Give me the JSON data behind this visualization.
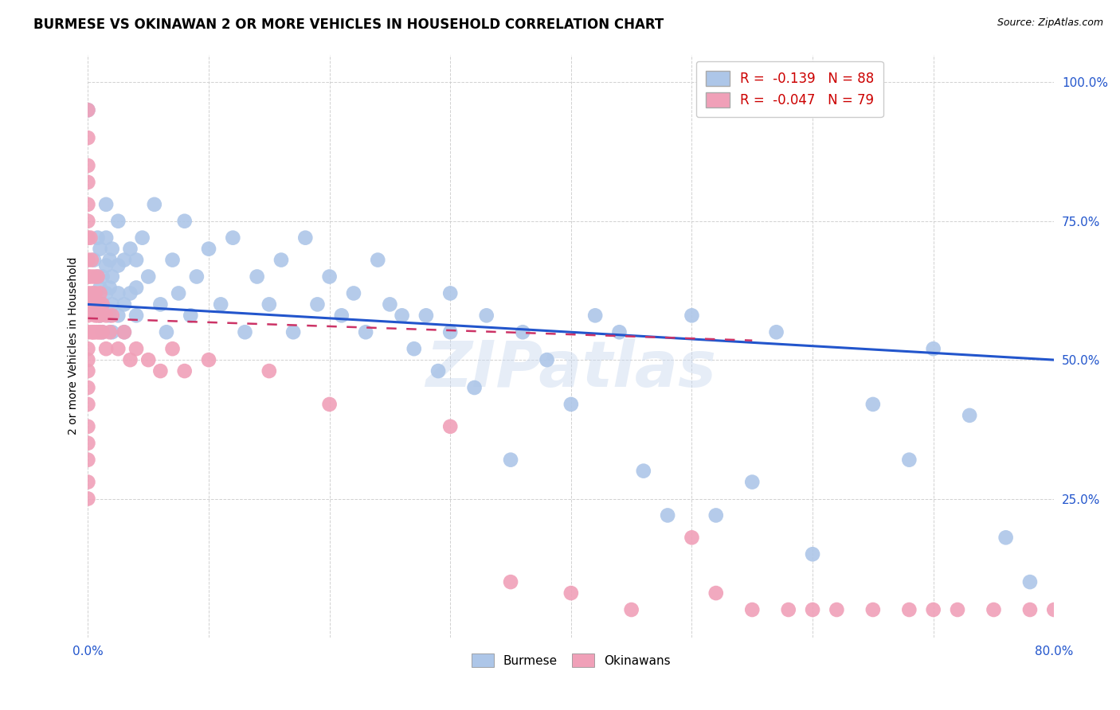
{
  "title": "BURMESE VS OKINAWAN 2 OR MORE VEHICLES IN HOUSEHOLD CORRELATION CHART",
  "source": "Source: ZipAtlas.com",
  "ylabel": "2 or more Vehicles in Household",
  "ytick_labels": [
    "100.0%",
    "75.0%",
    "50.0%",
    "25.0%"
  ],
  "ytick_values": [
    1.0,
    0.75,
    0.5,
    0.25
  ],
  "xlim": [
    0.0,
    0.8
  ],
  "ylim": [
    0.0,
    1.05
  ],
  "legend_r_burmese": "-0.139",
  "legend_n_burmese": "88",
  "legend_r_okinawan": "-0.047",
  "legend_n_okinawan": "79",
  "burmese_color": "#adc6e8",
  "okinawan_color": "#f0a0b8",
  "trendline_burmese_color": "#2255cc",
  "trendline_okinawan_color": "#cc3366",
  "watermark": "ZIPatlas",
  "burmese_x": [
    0.0,
    0.005,
    0.005,
    0.008,
    0.008,
    0.008,
    0.01,
    0.01,
    0.01,
    0.012,
    0.012,
    0.012,
    0.015,
    0.015,
    0.015,
    0.015,
    0.018,
    0.018,
    0.018,
    0.02,
    0.02,
    0.02,
    0.02,
    0.025,
    0.025,
    0.025,
    0.025,
    0.03,
    0.03,
    0.03,
    0.035,
    0.035,
    0.04,
    0.04,
    0.04,
    0.045,
    0.05,
    0.055,
    0.06,
    0.065,
    0.07,
    0.075,
    0.08,
    0.085,
    0.09,
    0.1,
    0.11,
    0.12,
    0.13,
    0.14,
    0.15,
    0.16,
    0.17,
    0.18,
    0.19,
    0.2,
    0.21,
    0.22,
    0.23,
    0.24,
    0.25,
    0.26,
    0.27,
    0.28,
    0.29,
    0.3,
    0.3,
    0.32,
    0.33,
    0.35,
    0.36,
    0.38,
    0.4,
    0.42,
    0.44,
    0.46,
    0.48,
    0.5,
    0.52,
    0.55,
    0.57,
    0.6,
    0.65,
    0.68,
    0.7,
    0.73,
    0.76,
    0.78
  ],
  "burmese_y": [
    0.95,
    0.62,
    0.68,
    0.6,
    0.65,
    0.72,
    0.58,
    0.63,
    0.7,
    0.55,
    0.6,
    0.65,
    0.62,
    0.67,
    0.72,
    0.78,
    0.58,
    0.63,
    0.68,
    0.55,
    0.6,
    0.65,
    0.7,
    0.58,
    0.62,
    0.67,
    0.75,
    0.55,
    0.6,
    0.68,
    0.62,
    0.7,
    0.58,
    0.63,
    0.68,
    0.72,
    0.65,
    0.78,
    0.6,
    0.55,
    0.68,
    0.62,
    0.75,
    0.58,
    0.65,
    0.7,
    0.6,
    0.72,
    0.55,
    0.65,
    0.6,
    0.68,
    0.55,
    0.72,
    0.6,
    0.65,
    0.58,
    0.62,
    0.55,
    0.68,
    0.6,
    0.58,
    0.52,
    0.58,
    0.48,
    0.55,
    0.62,
    0.45,
    0.58,
    0.32,
    0.55,
    0.5,
    0.42,
    0.58,
    0.55,
    0.3,
    0.22,
    0.58,
    0.22,
    0.28,
    0.55,
    0.15,
    0.42,
    0.32,
    0.52,
    0.4,
    0.18,
    0.1
  ],
  "okinawan_x": [
    0.0,
    0.0,
    0.0,
    0.0,
    0.0,
    0.0,
    0.0,
    0.0,
    0.0,
    0.0,
    0.0,
    0.0,
    0.0,
    0.0,
    0.0,
    0.0,
    0.0,
    0.0,
    0.0,
    0.0,
    0.0,
    0.0,
    0.0,
    0.002,
    0.002,
    0.002,
    0.003,
    0.003,
    0.003,
    0.004,
    0.004,
    0.005,
    0.005,
    0.005,
    0.006,
    0.006,
    0.007,
    0.007,
    0.008,
    0.008,
    0.009,
    0.009,
    0.01,
    0.01,
    0.01,
    0.012,
    0.012,
    0.015,
    0.015,
    0.018,
    0.02,
    0.025,
    0.03,
    0.035,
    0.04,
    0.05,
    0.06,
    0.07,
    0.08,
    0.1,
    0.15,
    0.2,
    0.3,
    0.35,
    0.4,
    0.45,
    0.5,
    0.52,
    0.55,
    0.58,
    0.6,
    0.62,
    0.65,
    0.68,
    0.7,
    0.72,
    0.75,
    0.78,
    0.8
  ],
  "okinawan_y": [
    0.95,
    0.9,
    0.85,
    0.82,
    0.78,
    0.75,
    0.72,
    0.68,
    0.65,
    0.62,
    0.6,
    0.58,
    0.55,
    0.52,
    0.5,
    0.48,
    0.45,
    0.42,
    0.38,
    0.35,
    0.32,
    0.28,
    0.25,
    0.72,
    0.65,
    0.6,
    0.68,
    0.62,
    0.55,
    0.6,
    0.55,
    0.65,
    0.6,
    0.55,
    0.62,
    0.58,
    0.6,
    0.55,
    0.65,
    0.58,
    0.6,
    0.55,
    0.58,
    0.62,
    0.55,
    0.6,
    0.55,
    0.58,
    0.52,
    0.55,
    0.58,
    0.52,
    0.55,
    0.5,
    0.52,
    0.5,
    0.48,
    0.52,
    0.48,
    0.5,
    0.48,
    0.42,
    0.38,
    0.1,
    0.08,
    0.05,
    0.18,
    0.08,
    0.05,
    0.05,
    0.05,
    0.05,
    0.05,
    0.05,
    0.05,
    0.05,
    0.05,
    0.05,
    0.05
  ],
  "burmese_trend_x": [
    0.0,
    0.8
  ],
  "burmese_trend_y": [
    0.6,
    0.5
  ],
  "okinawan_trend_x": [
    0.0,
    0.55
  ],
  "okinawan_trend_y": [
    0.575,
    0.535
  ]
}
